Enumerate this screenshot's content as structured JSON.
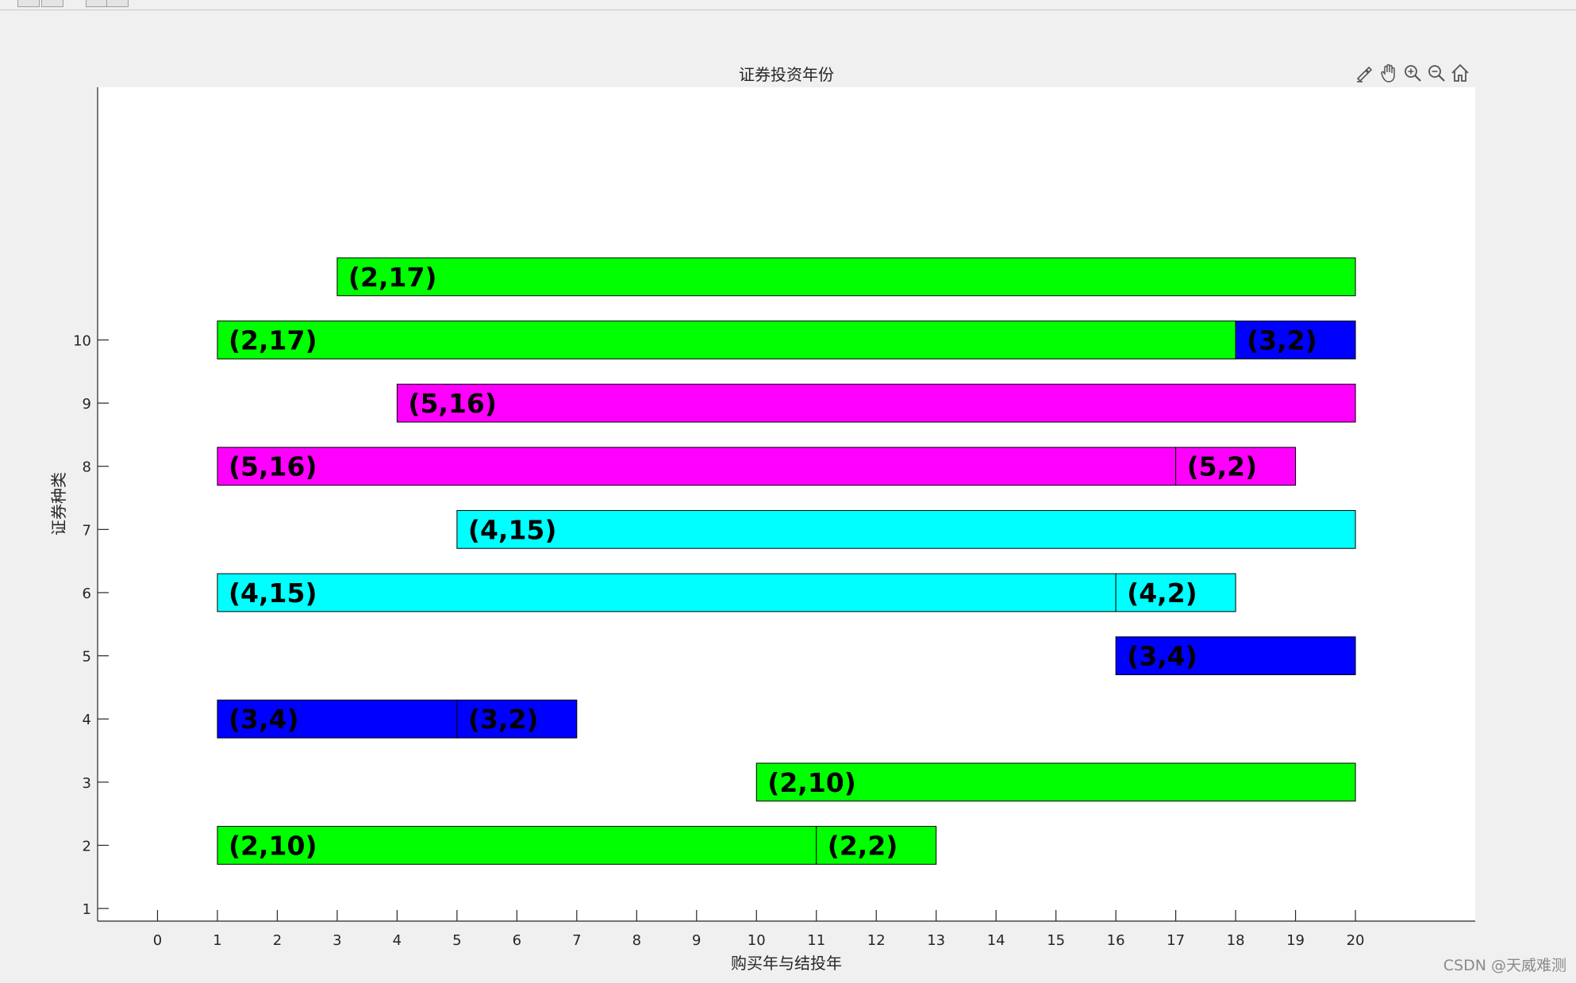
{
  "toolbar": {
    "buttons": [
      "save-icon",
      "print-icon",
      "insert-icon",
      "edit-icon"
    ]
  },
  "axes_toolbar": [
    {
      "name": "brush-icon"
    },
    {
      "name": "pan-icon"
    },
    {
      "name": "zoom-in-icon"
    },
    {
      "name": "zoom-out-icon"
    },
    {
      "name": "home-icon"
    }
  ],
  "watermark": "CSDN @天威难测",
  "colors": {
    "green": "#00ff00",
    "blue": "#0000ff",
    "magenta": "#ff00ff",
    "cyan": "#00ffff"
  },
  "chart_data": {
    "type": "gantt",
    "title": "证券投资年份",
    "xlabel": "购买年与结投年",
    "ylabel": "证券种类",
    "xlim": [
      -1,
      22
    ],
    "ylim": [
      0.8,
      14
    ],
    "xticks": [
      0,
      1,
      2,
      3,
      4,
      5,
      6,
      7,
      8,
      9,
      10,
      11,
      12,
      13,
      14,
      15,
      16,
      17,
      18,
      19,
      20
    ],
    "yticks": [
      1,
      2,
      3,
      4,
      5,
      6,
      7,
      8,
      9,
      10
    ],
    "bar_height": 0.6,
    "bars": [
      {
        "y": 2,
        "start": 1,
        "end": 11,
        "label": "(2,10)",
        "color": "#00ff00"
      },
      {
        "y": 2,
        "start": 11,
        "end": 13,
        "label": "(2,2)",
        "color": "#00ff00"
      },
      {
        "y": 3,
        "start": 10,
        "end": 20,
        "label": "(2,10)",
        "color": "#00ff00"
      },
      {
        "y": 4,
        "start": 1,
        "end": 5,
        "label": "(3,4)",
        "color": "#0000ff"
      },
      {
        "y": 4,
        "start": 5,
        "end": 7,
        "label": "(3,2)",
        "color": "#0000ff"
      },
      {
        "y": 5,
        "start": 16,
        "end": 20,
        "label": "(3,4)",
        "color": "#0000ff"
      },
      {
        "y": 6,
        "start": 1,
        "end": 16,
        "label": "(4,15)",
        "color": "#00ffff"
      },
      {
        "y": 6,
        "start": 16,
        "end": 18,
        "label": "(4,2)",
        "color": "#00ffff"
      },
      {
        "y": 7,
        "start": 5,
        "end": 20,
        "label": "(4,15)",
        "color": "#00ffff"
      },
      {
        "y": 8,
        "start": 1,
        "end": 17,
        "label": "(5,16)",
        "color": "#ff00ff"
      },
      {
        "y": 8,
        "start": 17,
        "end": 19,
        "label": "(5,2)",
        "color": "#ff00ff"
      },
      {
        "y": 9,
        "start": 4,
        "end": 20,
        "label": "(5,16)",
        "color": "#ff00ff"
      },
      {
        "y": 10,
        "start": 1,
        "end": 18,
        "label": "(2,17)",
        "color": "#00ff00"
      },
      {
        "y": 10,
        "start": 18,
        "end": 20,
        "label": "(3,2)",
        "color": "#0000ff"
      },
      {
        "y": 11,
        "start": 3,
        "end": 20,
        "label": "(2,17)",
        "color": "#00ff00"
      }
    ]
  }
}
